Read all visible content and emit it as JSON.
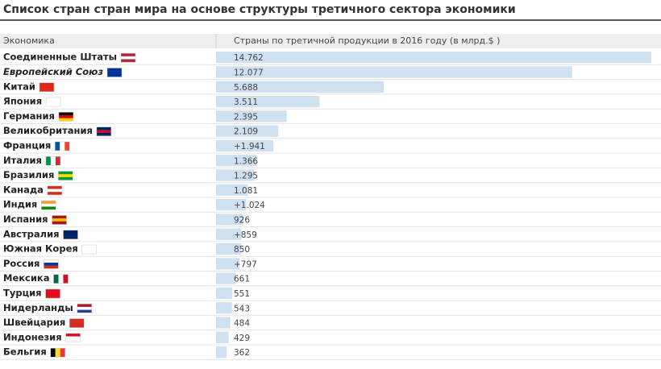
{
  "chart_data": {
    "type": "bar",
    "orientation": "horizontal",
    "title": "Список стран стран мира на основе структуры третичного сектора экономики",
    "category_header": "Экономика",
    "value_header": "Страны по третичной продукции в 2016 году (в млрд.$ )",
    "categories": [
      "Соединенные Штаты",
      "Европейский Союз",
      "Китай",
      "Япония",
      "Германия",
      "Великобритания",
      "Франция",
      "Италия",
      "Бразилия",
      "Канада",
      "Индия",
      "Испания",
      "Австралия",
      "Южная Корея",
      "Россия",
      "Мексика",
      "Турция",
      "Нидерланды",
      "Швейцария",
      "Индонезия",
      "Бельгия"
    ],
    "values": [
      14762,
      12077,
      5688,
      3511,
      2395,
      2109,
      1941,
      1366,
      1295,
      1081,
      1024,
      926,
      859,
      850,
      797,
      661,
      551,
      543,
      484,
      429,
      362
    ],
    "value_labels": [
      "14.762",
      "12.077",
      "5.688",
      "3.511",
      "2.395",
      "2.109",
      "+1.941",
      "1.366",
      "1.295",
      "1.081",
      "+1.024",
      "926",
      "+859",
      "850",
      "+797",
      "661",
      "551",
      "543",
      "484",
      "429",
      "362"
    ],
    "color": "#cfe0f1"
  }
}
